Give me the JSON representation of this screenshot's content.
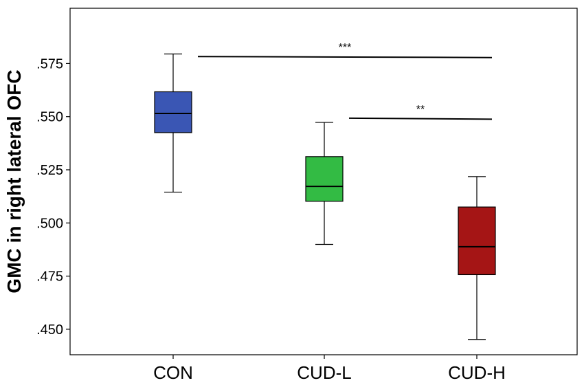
{
  "chart_data": {
    "type": "boxplot",
    "ylabel": "GMC in right lateral OFC",
    "xlabel": "",
    "ylim": [
      0.438,
      0.601
    ],
    "y_ticks": [
      0.45,
      0.475,
      0.5,
      0.525,
      0.55,
      0.575
    ],
    "y_tick_labels": [
      ".450",
      ".475",
      ".500",
      ".525",
      ".550",
      ".575"
    ],
    "categories": [
      "CON",
      "CUD-L",
      "CUD-H"
    ],
    "boxes": [
      {
        "name": "CON",
        "whisker_low": 0.5145,
        "q1": 0.5425,
        "median": 0.5515,
        "q3": 0.5617,
        "whisker_high": 0.5795,
        "color": "#3a56b4"
      },
      {
        "name": "CUD-L",
        "whisker_low": 0.4899,
        "q1": 0.5102,
        "median": 0.5172,
        "q3": 0.5312,
        "whisker_high": 0.5473,
        "color": "#33bb44"
      },
      {
        "name": "CUD-H",
        "whisker_low": 0.4452,
        "q1": 0.4757,
        "median": 0.4888,
        "q3": 0.5075,
        "whisker_high": 0.5218,
        "color": "#a51515"
      }
    ],
    "significance": [
      {
        "from": "CON",
        "to": "CUD-H",
        "label": "***",
        "y": 0.5783
      },
      {
        "from": "CUD-L",
        "to": "CUD-H",
        "label": "**",
        "y": 0.5493
      }
    ],
    "grid": false,
    "legend": "none"
  }
}
